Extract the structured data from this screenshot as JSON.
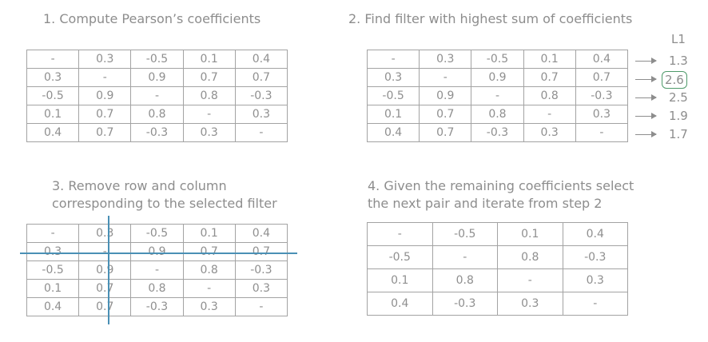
{
  "steps": {
    "s1": "1. Compute Pearson’s coefficients",
    "s2": "2. Find filter with highest sum of coefficients",
    "s3": "3. Remove row and column\ncorresponding to the selected filter",
    "s4": "4. Given the remaining coefficients select\nthe next pair and iterate from step 2"
  },
  "matrix": [
    [
      "-",
      "0.3",
      "-0.5",
      "0.1",
      "0.4"
    ],
    [
      "0.3",
      "-",
      "0.9",
      "0.7",
      "0.7"
    ],
    [
      "-0.5",
      "0.9",
      "-",
      "0.8",
      "-0.3"
    ],
    [
      "0.1",
      "0.7",
      "0.8",
      "-",
      "0.3"
    ],
    [
      "0.4",
      "0.7",
      "-0.3",
      "0.3",
      "-"
    ]
  ],
  "reduced_matrix": [
    [
      "-",
      "-0.5",
      "0.1",
      "0.4"
    ],
    [
      "-0.5",
      "-",
      "0.8",
      "-0.3"
    ],
    [
      "0.1",
      "0.8",
      "-",
      "0.3"
    ],
    [
      "0.4",
      "-0.3",
      "0.3",
      "-"
    ]
  ],
  "l1": {
    "header": "L1",
    "values": [
      "1.3",
      "2.6",
      "2.5",
      "1.9",
      "1.7"
    ],
    "selected_index": 1
  },
  "colors": {
    "selected_box": "#4f9a6a",
    "strike_line": "#4a90b5"
  }
}
